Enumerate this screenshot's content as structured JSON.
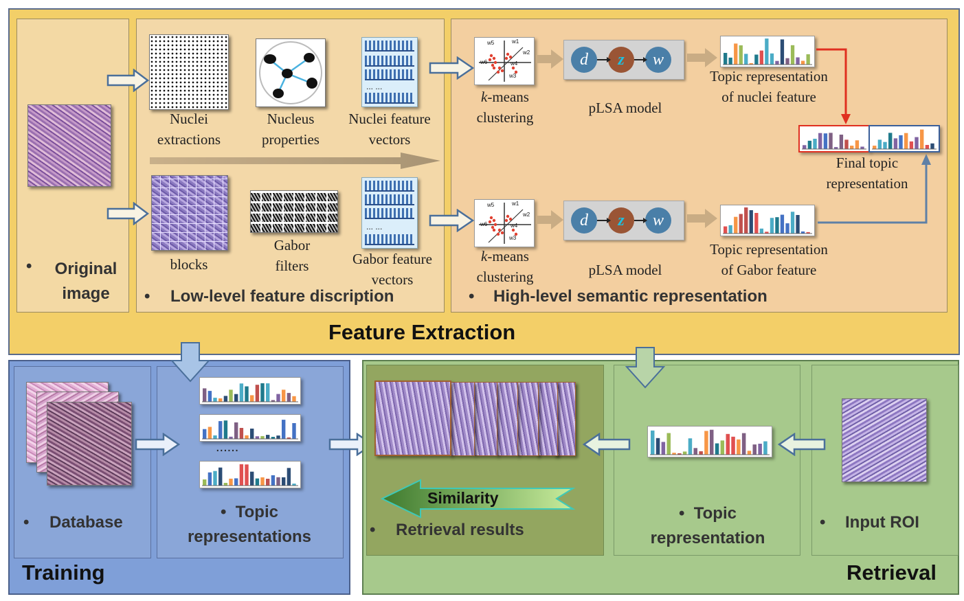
{
  "feature_extraction": {
    "title": "Feature Extraction",
    "original_image": {
      "bullet": "•",
      "label": "Original image"
    },
    "low_level": {
      "section_label": "Low-level feature discription",
      "nuclei_extractions": "Nuclei extractions",
      "nucleus_properties": "Nucleus properties",
      "nuclei_feature_vectors": "Nuclei feature vectors",
      "blocks": "blocks",
      "gabor_filters": "Gabor filters",
      "gabor_feature_vectors": "Gabor feature vectors",
      "vector_dots": "... ..."
    },
    "high_level": {
      "section_label": "High-level semantic representation",
      "kmeans_italic": "k",
      "kmeans_rest": "-means",
      "clustering": "clustering",
      "plsa_model": "pLSA model",
      "node_d": "d",
      "node_z": "z",
      "node_w": "w",
      "topic_nuclei_line1": "Topic representation",
      "topic_nuclei_line2": "of nuclei feature",
      "topic_gabor_line1": "Topic representation",
      "topic_gabor_line2": "of Gabor feature",
      "final_line1": "Final topic",
      "final_line2": "representation",
      "cluster_labels": [
        "w5",
        "w1",
        "w2",
        "w6",
        "w4",
        "w3"
      ]
    }
  },
  "training": {
    "title": "Training",
    "database_label": "Database",
    "topic_reps_line1": "Topic",
    "topic_reps_line2": "representations",
    "ellipsis": "......"
  },
  "retrieval": {
    "title": "Retrieval",
    "similarity": "Similarity",
    "retrieval_results": "Retrieval results",
    "topic_rep_line1": "Topic",
    "topic_rep_line2": "representation",
    "input_roi": "Input ROI"
  },
  "colors": {
    "feature_bg": "#f3cf68",
    "low_panel": "#f3d8a8",
    "high_panel": "#f3cfa0",
    "training_bg": "#7f9fd8",
    "retrieval_bg": "#a7c98c",
    "arrow_red": "#e03020",
    "arrow_blue": "#5e80a6"
  }
}
